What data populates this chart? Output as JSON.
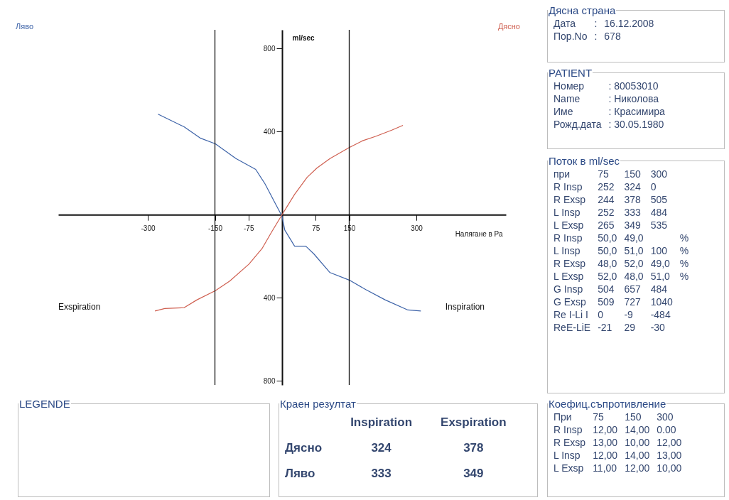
{
  "chart_data": [
    {
      "type": "line",
      "xlabel": "Налягане в Ра",
      "ylabel": "ml/sec",
      "xlim": [
        -500,
        500
      ],
      "ylim": [
        -820,
        890
      ],
      "xticks": [
        -300,
        -150,
        -75,
        75,
        150,
        300
      ],
      "yticks": [
        {
          "value": -800,
          "label": "800"
        },
        {
          "value": -400,
          "label": "400"
        },
        400,
        800
      ],
      "grid": false,
      "line_style": "solid",
      "series": [
        {
          "name": "Ляво",
          "color": "#3d63a8",
          "x": [
            -277,
            -219,
            -183,
            -149,
            -103,
            -59,
            -38,
            -16,
            0,
            6,
            28,
            53,
            71,
            107,
            150,
            187,
            230,
            281,
            310
          ],
          "values": [
            484,
            423,
            369,
            341,
            270,
            218,
            148,
            57,
            -8,
            -74,
            -152,
            -152,
            -189,
            -279,
            -315,
            -361,
            -410,
            -459,
            -464
          ]
        },
        {
          "name": "Дясно",
          "color": "#cf5f50",
          "x": [
            -284,
            -262,
            -219,
            -190,
            -149,
            -117,
            -74,
            -45,
            -23,
            0,
            28,
            56,
            78,
            107,
            150,
            180,
            209,
            245,
            270
          ],
          "values": [
            -464,
            -452,
            -448,
            -410,
            -366,
            -320,
            -238,
            -164,
            -82,
            0,
            98,
            180,
            225,
            270,
            323,
            356,
            377,
            407,
            430
          ]
        }
      ],
      "ref_lines": [
        {
          "axis": "x",
          "value": -150
        },
        {
          "axis": "x",
          "value": 150
        }
      ],
      "annotations": [
        "Exspiration",
        "Inspiration"
      ]
    },
    {
      "type": "other",
      "title": "Дясна страна",
      "annotations": [
        "Дата\t:\t16.12.2008",
        "Пор.No\t:\t678"
      ]
    },
    {
      "type": "other",
      "title": "PATIENT",
      "annotations": [
        "Номер\t: 80053010",
        "Name\t: Николова",
        "Име\t: Красимира",
        "Рожд.дата\t: 30.05.1980"
      ]
    },
    {
      "type": "other",
      "title": "Поток в ml/sec",
      "annotations": [
        "при\t75\t150\t300\t",
        "R Insp\t252\t324\t0\t",
        "R Exsp\t244\t378\t505\t",
        "L Insp\t252\t333\t484\t",
        "L Exsp\t265\t349\t535\t",
        "R Insp\t50,0\t49,0\t\t%",
        "L Insp\t50,0\t51,0\t100\t%",
        "R Exsp\t48,0\t52,0\t49,0\t%",
        "L Exsp\t52,0\t48,0\t51,0\t%",
        "G Insp\t504\t657\t484\t",
        "G Exsp\t509\t727\t1040\t",
        "Re I-Li I\t0\t-9\t-484\t",
        "ReE-LiE\t-21\t29\t-30\t"
      ]
    },
    {
      "type": "other",
      "title": "LEGENDE"
    },
    {
      "type": "other",
      "title": "Краен резултат",
      "annotations": [
        "\tInspiration\tExspiration",
        "Дясно\t324\t378",
        "Ляво\t333\t349"
      ]
    },
    {
      "type": "other",
      "title": "Коефиц.съпротивление",
      "annotations": [
        "При\t75\t150\t300",
        "R Insp\t12,00\t14,00\t0.00",
        "R Exsp\t13,00\t10,00\t12,00",
        "L Insp\t12,00\t14,00\t13,00",
        "L Exsp\t11,00\t12,00\t10,00"
      ]
    }
  ]
}
